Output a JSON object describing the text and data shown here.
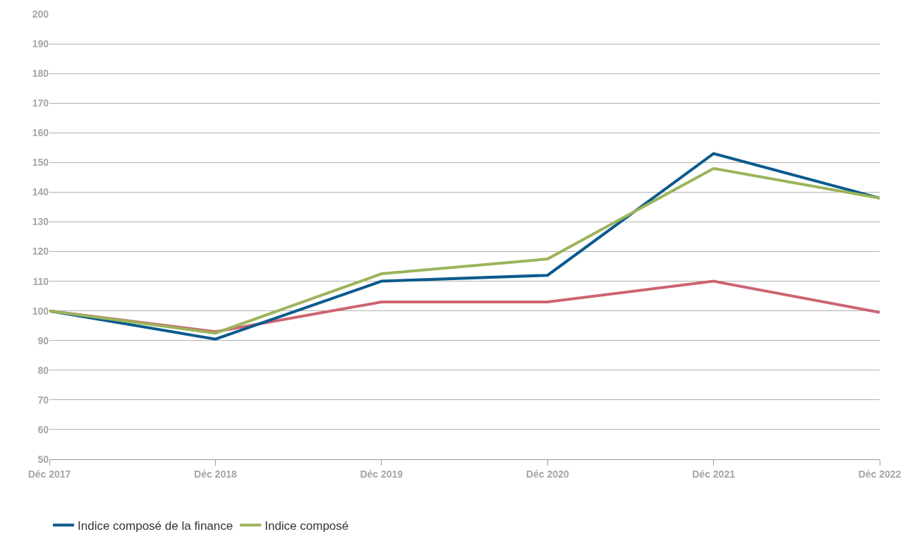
{
  "chart_data": {
    "type": "line",
    "categories": [
      "Déc 2017",
      "Déc 2018",
      "Déc 2019",
      "Déc 2020",
      "Déc 2021",
      "Déc 2022"
    ],
    "series": [
      {
        "color": "#cc6470",
        "values": [
          100,
          93,
          103,
          103,
          110,
          99.5
        ]
      },
      {
        "name": "Indice composé de la finance",
        "color": "#0b5a8e",
        "values": [
          100,
          90.5,
          110,
          112,
          153,
          138
        ]
      },
      {
        "name": "Indice composé",
        "color": "#9bb45a",
        "values": [
          100,
          92.5,
          112.5,
          117.5,
          148,
          138
        ]
      }
    ],
    "ylim": [
      50,
      200
    ],
    "yticks": [
      50,
      60,
      70,
      80,
      90,
      100,
      110,
      120,
      130,
      140,
      150,
      160,
      170,
      180,
      190,
      200
    ],
    "grid": "y",
    "legend": "bottom left",
    "marker": "none",
    "line_style": "solid"
  }
}
